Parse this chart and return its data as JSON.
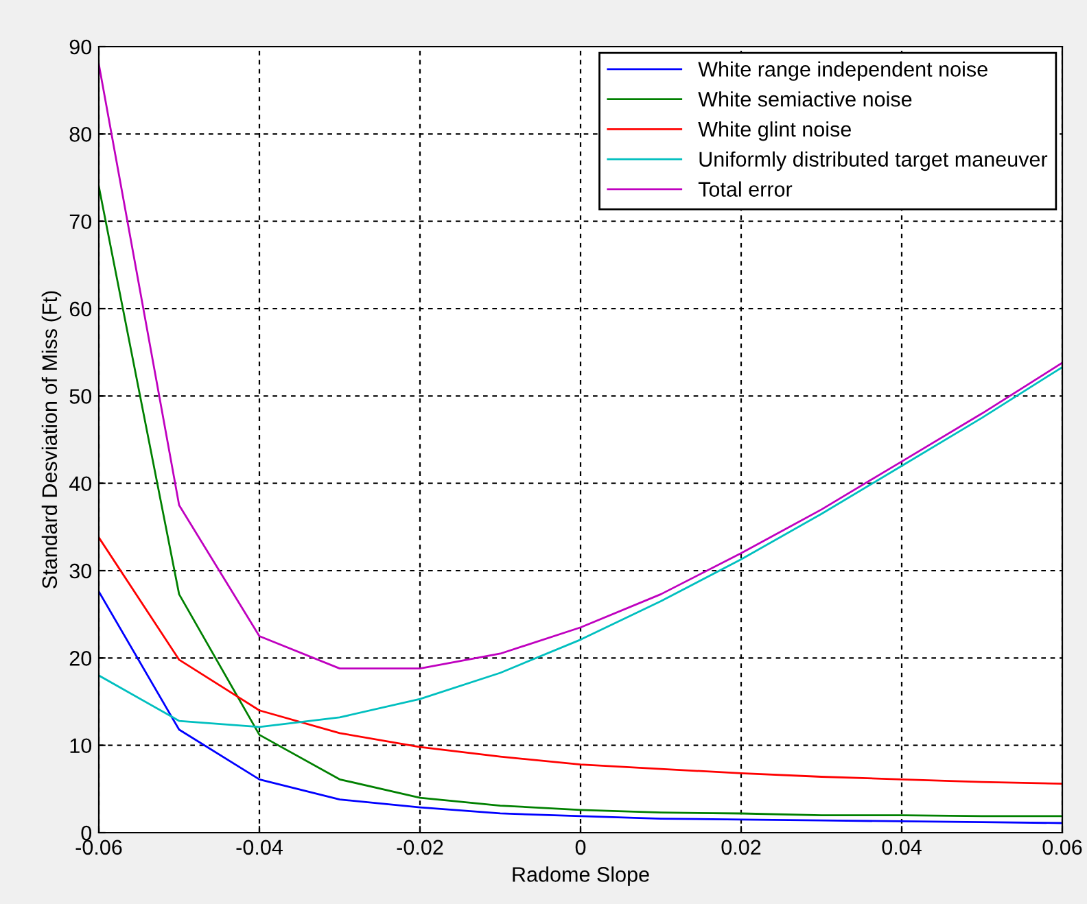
{
  "chart_data": {
    "type": "line",
    "xlabel": "Radome Slope",
    "ylabel": "Standard Desviation of Miss (Ft)",
    "x": [
      -0.06,
      -0.05,
      -0.04,
      -0.03,
      -0.02,
      -0.01,
      0,
      0.01,
      0.02,
      0.03,
      0.04,
      0.05,
      0.06
    ],
    "series": [
      {
        "name": "White range independent noise",
        "color": "#0000ff",
        "values": [
          27.6,
          11.8,
          6.1,
          3.8,
          2.9,
          2.2,
          1.9,
          1.6,
          1.5,
          1.4,
          1.3,
          1.2,
          1.1
        ]
      },
      {
        "name": "White semiactive noise",
        "color": "#008000",
        "values": [
          74,
          27.3,
          11.2,
          6.1,
          4.0,
          3.1,
          2.6,
          2.3,
          2.2,
          2.0,
          2.0,
          1.9,
          1.9
        ]
      },
      {
        "name": "White glint noise",
        "color": "#ff0000",
        "values": [
          33.8,
          19.8,
          14,
          11.4,
          9.8,
          8.7,
          7.8,
          7.3,
          6.8,
          6.4,
          6.1,
          5.8,
          5.6
        ]
      },
      {
        "name": "Uniformly distributed target maneuver",
        "color": "#00bfbf",
        "values": [
          18,
          12.8,
          12.1,
          13.2,
          15.3,
          18.3,
          22.1,
          26.5,
          31.3,
          36.5,
          42,
          47.5,
          53.3
        ]
      },
      {
        "name": "Total error",
        "color": "#bf00bf",
        "values": [
          88,
          37.5,
          22.5,
          18.8,
          18.8,
          20.5,
          23.5,
          27.3,
          32,
          37,
          42.5,
          48,
          53.8
        ]
      }
    ],
    "xlim": [
      -0.06,
      0.06
    ],
    "xticks": [
      -0.06,
      -0.04,
      -0.02,
      0,
      0.02,
      0.04,
      0.06
    ],
    "ylim": [
      0,
      90
    ],
    "yticks": [
      0,
      10,
      20,
      30,
      40,
      50,
      60,
      70,
      80,
      90
    ],
    "grid": true,
    "legend": "top right",
    "line_style": "solid",
    "marker": "none"
  }
}
